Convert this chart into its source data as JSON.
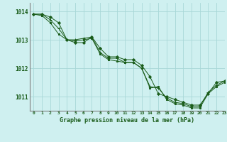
{
  "title": "Graphe pression niveau de la mer (hPa)",
  "bg_color": "#cff0f0",
  "grid_color": "#a8d8d8",
  "line_color": "#1a5c1a",
  "xlim": [
    -0.5,
    23
  ],
  "ylim": [
    1010.5,
    1014.3
  ],
  "yticks": [
    1011,
    1012,
    1013,
    1014
  ],
  "xticks": [
    0,
    1,
    2,
    3,
    4,
    5,
    6,
    7,
    8,
    9,
    10,
    11,
    12,
    13,
    14,
    15,
    16,
    17,
    18,
    19,
    20,
    21,
    22,
    23
  ],
  "series": [
    [
      1013.9,
      1013.9,
      1013.8,
      1013.6,
      1013.0,
      1012.9,
      1012.9,
      1013.1,
      1012.7,
      1012.4,
      1012.4,
      1012.3,
      1012.3,
      1012.1,
      1011.7,
      1011.1,
      1011.0,
      1010.9,
      1010.8,
      1010.7,
      1010.7,
      1011.1,
      1011.5,
      1011.55
    ],
    [
      1013.9,
      1013.9,
      1013.7,
      1013.4,
      1013.0,
      1013.0,
      1013.05,
      1013.1,
      1012.55,
      1012.35,
      1012.35,
      1012.2,
      1012.2,
      1012.0,
      1011.35,
      1011.3,
      1010.95,
      1010.8,
      1010.75,
      1010.65,
      1010.65,
      1011.15,
      1011.4,
      1011.55
    ],
    [
      1013.9,
      1013.85,
      1013.6,
      1013.2,
      1013.0,
      1012.95,
      1013.0,
      1013.05,
      1012.5,
      1012.3,
      1012.25,
      1012.2,
      1012.2,
      1012.0,
      1011.3,
      1011.35,
      1010.9,
      1010.75,
      1010.7,
      1010.6,
      1010.6,
      1011.1,
      1011.35,
      1011.5
    ]
  ],
  "markers": [
    "D",
    "+",
    "s"
  ],
  "markersizes": [
    2.0,
    3.5,
    2.0
  ]
}
